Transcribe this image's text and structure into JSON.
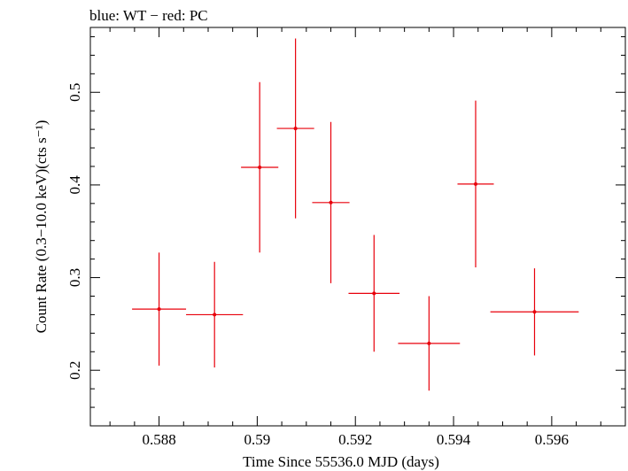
{
  "chart_data": {
    "type": "scatter",
    "title": "blue: WT − red: PC",
    "xlabel": "Time Since 55536.0 MJD (days)",
    "ylabel": "Count Rate (0.3−10.0 keV)(cts s⁻¹)",
    "xlim": [
      0.5866,
      0.5975
    ],
    "ylim": [
      0.14,
      0.57
    ],
    "xticks": [
      {
        "value": 0.588,
        "label": "0.588"
      },
      {
        "value": 0.59,
        "label": "0.59"
      },
      {
        "value": 0.592,
        "label": "0.592"
      },
      {
        "value": 0.594,
        "label": "0.594"
      },
      {
        "value": 0.596,
        "label": "0.596"
      }
    ],
    "yticks": [
      {
        "value": 0.2,
        "label": "0.2"
      },
      {
        "value": 0.3,
        "label": "0.3"
      },
      {
        "value": 0.4,
        "label": "0.4"
      },
      {
        "value": 0.5,
        "label": "0.5"
      }
    ],
    "series": [
      {
        "color": "#e8000b",
        "points": [
          {
            "x": 0.588,
            "y": 0.266,
            "xerr_lo": 0.00055,
            "xerr_hi": 0.00055,
            "yerr_lo": 0.061,
            "yerr_hi": 0.061
          },
          {
            "x": 0.58913,
            "y": 0.26,
            "xerr_lo": 0.00058,
            "xerr_hi": 0.00058,
            "yerr_lo": 0.057,
            "yerr_hi": 0.057
          },
          {
            "x": 0.59005,
            "y": 0.419,
            "xerr_lo": 0.00038,
            "xerr_hi": 0.00038,
            "yerr_lo": 0.092,
            "yerr_hi": 0.092
          },
          {
            "x": 0.59078,
            "y": 0.461,
            "xerr_lo": 0.00038,
            "xerr_hi": 0.00038,
            "yerr_lo": 0.097,
            "yerr_hi": 0.097
          },
          {
            "x": 0.5915,
            "y": 0.381,
            "xerr_lo": 0.00038,
            "xerr_hi": 0.00038,
            "yerr_lo": 0.087,
            "yerr_hi": 0.087
          },
          {
            "x": 0.59238,
            "y": 0.283,
            "xerr_lo": 0.00052,
            "xerr_hi": 0.00052,
            "yerr_lo": 0.063,
            "yerr_hi": 0.063
          },
          {
            "x": 0.5935,
            "y": 0.229,
            "xerr_lo": 0.00063,
            "xerr_hi": 0.00063,
            "yerr_lo": 0.051,
            "yerr_hi": 0.051
          },
          {
            "x": 0.59445,
            "y": 0.401,
            "xerr_lo": 0.00037,
            "xerr_hi": 0.00037,
            "yerr_lo": 0.09,
            "yerr_hi": 0.09
          },
          {
            "x": 0.59565,
            "y": 0.263,
            "xerr_lo": 0.0009,
            "xerr_hi": 0.0009,
            "yerr_lo": 0.047,
            "yerr_hi": 0.047
          }
        ]
      }
    ],
    "grid": false
  }
}
